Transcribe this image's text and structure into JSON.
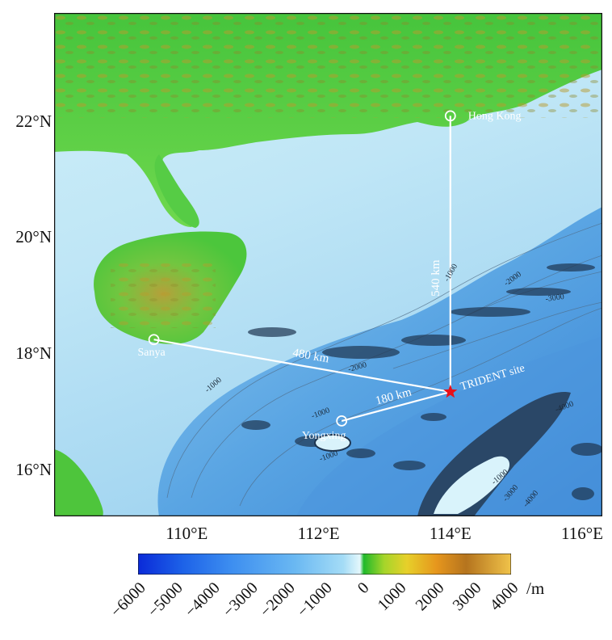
{
  "map": {
    "lat_labels": [
      {
        "text": "22°N",
        "lat": 22
      },
      {
        "text": "20°N",
        "lat": 20
      },
      {
        "text": "18°N",
        "lat": 18
      },
      {
        "text": "16°N",
        "lat": 16
      }
    ],
    "lon_labels": [
      {
        "text": "110°E",
        "lon": 110
      },
      {
        "text": "112°E",
        "lon": 112
      },
      {
        "text": "114°E",
        "lon": 114
      },
      {
        "text": "116°E",
        "lon": 116
      }
    ],
    "places": [
      {
        "name": "Hong Kong",
        "lon": 114.0,
        "lat": 22.1
      },
      {
        "name": "Sanya",
        "lon": 109.5,
        "lat": 18.25
      },
      {
        "name": "Yongxing",
        "lon": 112.35,
        "lat": 16.85
      }
    ],
    "site": {
      "name": "TRIDENT site",
      "lon": 114.0,
      "lat": 17.35
    },
    "distances": [
      {
        "label": "540 km",
        "from": "Hong Kong"
      },
      {
        "label": "480 km",
        "from": "Sanya"
      },
      {
        "label": "180 km",
        "from": "Yongxing"
      }
    ],
    "contour_labels": [
      "-1000",
      "-2000",
      "-3000",
      "-4000",
      "-1000",
      "-2000",
      "-1000",
      "-1000",
      "-1000",
      "-3000",
      "-4000"
    ],
    "colors": {
      "site_star": "#e8101a",
      "route_line": "#ffffff",
      "land_low": "#3fc43a",
      "land_high": "#b8902a",
      "shelf": "#cdeef7",
      "deep": "#3a86d6"
    }
  },
  "colorbar": {
    "ticks": [
      "−6000",
      "−5000",
      "−4000",
      "−3000",
      "−2000",
      "−1000",
      "0",
      "1000",
      "2000",
      "3000",
      "4000"
    ],
    "unit": "/m",
    "min": -6000,
    "max": 4000
  }
}
